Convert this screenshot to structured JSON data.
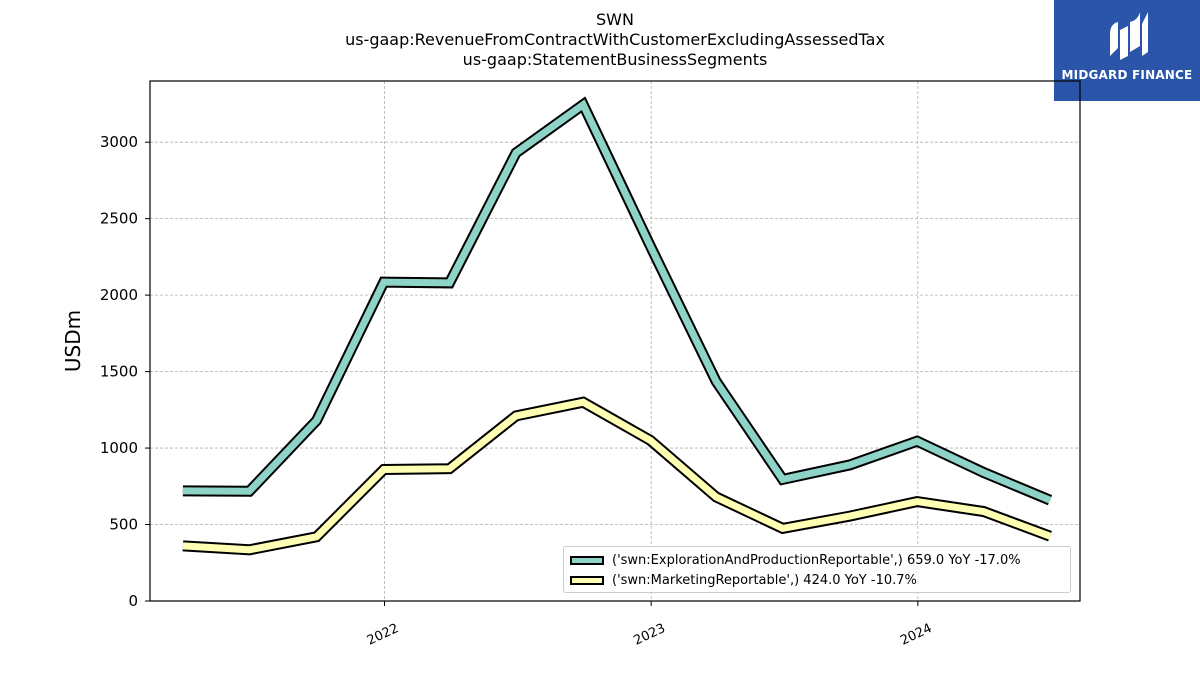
{
  "header": {
    "title_lines": [
      "SWN",
      "us-gaap:RevenueFromContractWithCustomerExcludingAssessedTax",
      "us-gaap:StatementBusinessSegments"
    ]
  },
  "logo": {
    "text": "MIDGARD FINANCE",
    "color": "#2b55a8"
  },
  "chart_data": {
    "type": "line",
    "ylabel": "USDm",
    "xlabel": "",
    "ylim": [
      0,
      3400
    ],
    "yticks": [
      0,
      500,
      1000,
      1500,
      2000,
      2500,
      3000
    ],
    "ytick_labels": [
      "0",
      "500",
      "1000",
      "1500",
      "2000",
      "2500",
      "3000"
    ],
    "xlim": [
      "2021-02-14",
      "2024-08-10"
    ],
    "xticks": [
      "2022-01-01",
      "2023-01-01",
      "2024-01-01"
    ],
    "xtick_labels": [
      "2022",
      "2023",
      "2024"
    ],
    "grid": true,
    "legend_position": "lower-right",
    "x": [
      "2021-03-31",
      "2021-06-30",
      "2021-09-30",
      "2021-12-31",
      "2022-03-31",
      "2022-06-30",
      "2022-09-30",
      "2022-12-31",
      "2023-03-31",
      "2023-06-30",
      "2023-09-30",
      "2023-12-31",
      "2024-03-31",
      "2024-06-30"
    ],
    "series": [
      {
        "name": "('swn:ExplorationAndProductionReportable',) 659.0 YoY -17.0%",
        "color": "#8dd3c7",
        "values": [
          720,
          718,
          1180,
          2085,
          2080,
          2930,
          3245,
          2320,
          1435,
          795,
          890,
          1045,
          840,
          659
        ]
      },
      {
        "name": "('swn:MarketingReportable',) 424.0 YoY -10.7%",
        "color": "#ffffb3",
        "values": [
          360,
          335,
          420,
          860,
          865,
          1210,
          1300,
          1050,
          680,
          475,
          555,
          650,
          585,
          424
        ]
      }
    ]
  }
}
